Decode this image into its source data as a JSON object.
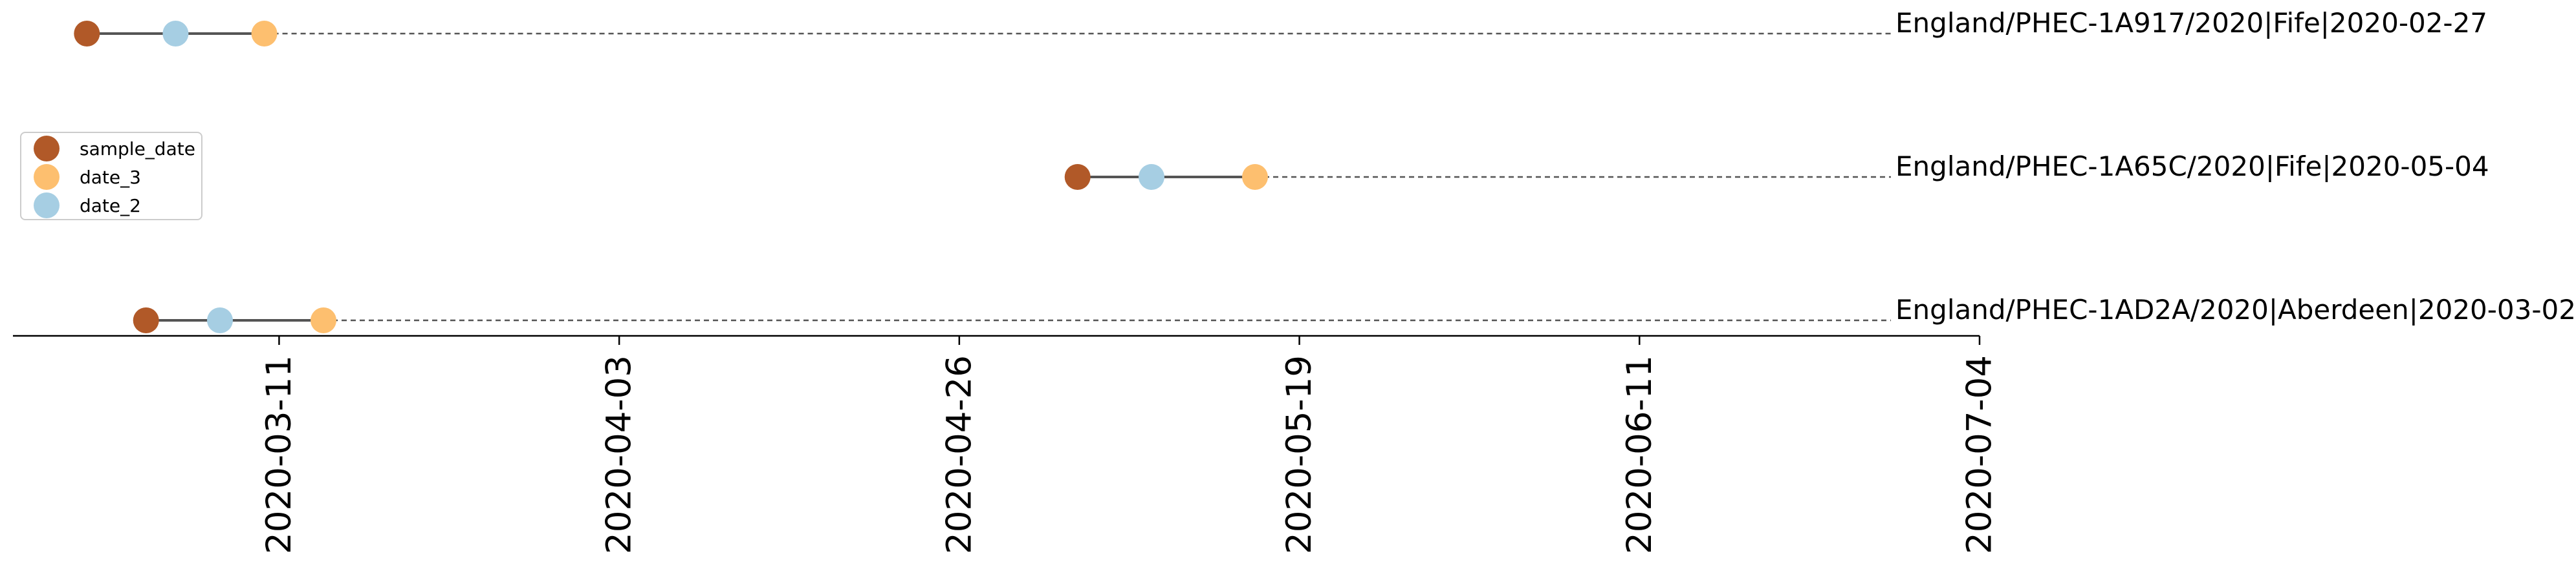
{
  "chart_data": {
    "type": "timeline",
    "x_axis_type": "date",
    "xlim": [
      "2020-02-22",
      "2020-07-04"
    ],
    "xticks": [
      "2020-03-11",
      "2020-04-03",
      "2020-04-26",
      "2020-05-19",
      "2020-06-11",
      "2020-07-04"
    ],
    "legend": {
      "placement": "left",
      "entries": [
        {
          "name": "sample_date",
          "color": "#b15928"
        },
        {
          "name": "date_3",
          "color": "#fdbf6f"
        },
        {
          "name": "date_2",
          "color": "#a6cee3"
        }
      ]
    },
    "rows": [
      {
        "label": "England/PHEC-1A917/2020|Fife|2020-02-27",
        "sample_date": "2020-02-27",
        "date_2": "2020-03-04",
        "date_3": "2020-03-10"
      },
      {
        "label": "England/PHEC-1A65C/2020|Fife|2020-05-04",
        "sample_date": "2020-05-04",
        "date_2": "2020-05-09",
        "date_3": "2020-05-16"
      },
      {
        "label": "England/PHEC-1AD2A/2020|Aberdeen|2020-03-02",
        "sample_date": "2020-03-02",
        "date_2": "2020-03-07",
        "date_3": "2020-03-14"
      }
    ],
    "connector_color": "#555555",
    "guide_color": "#555555",
    "grid": false
  }
}
